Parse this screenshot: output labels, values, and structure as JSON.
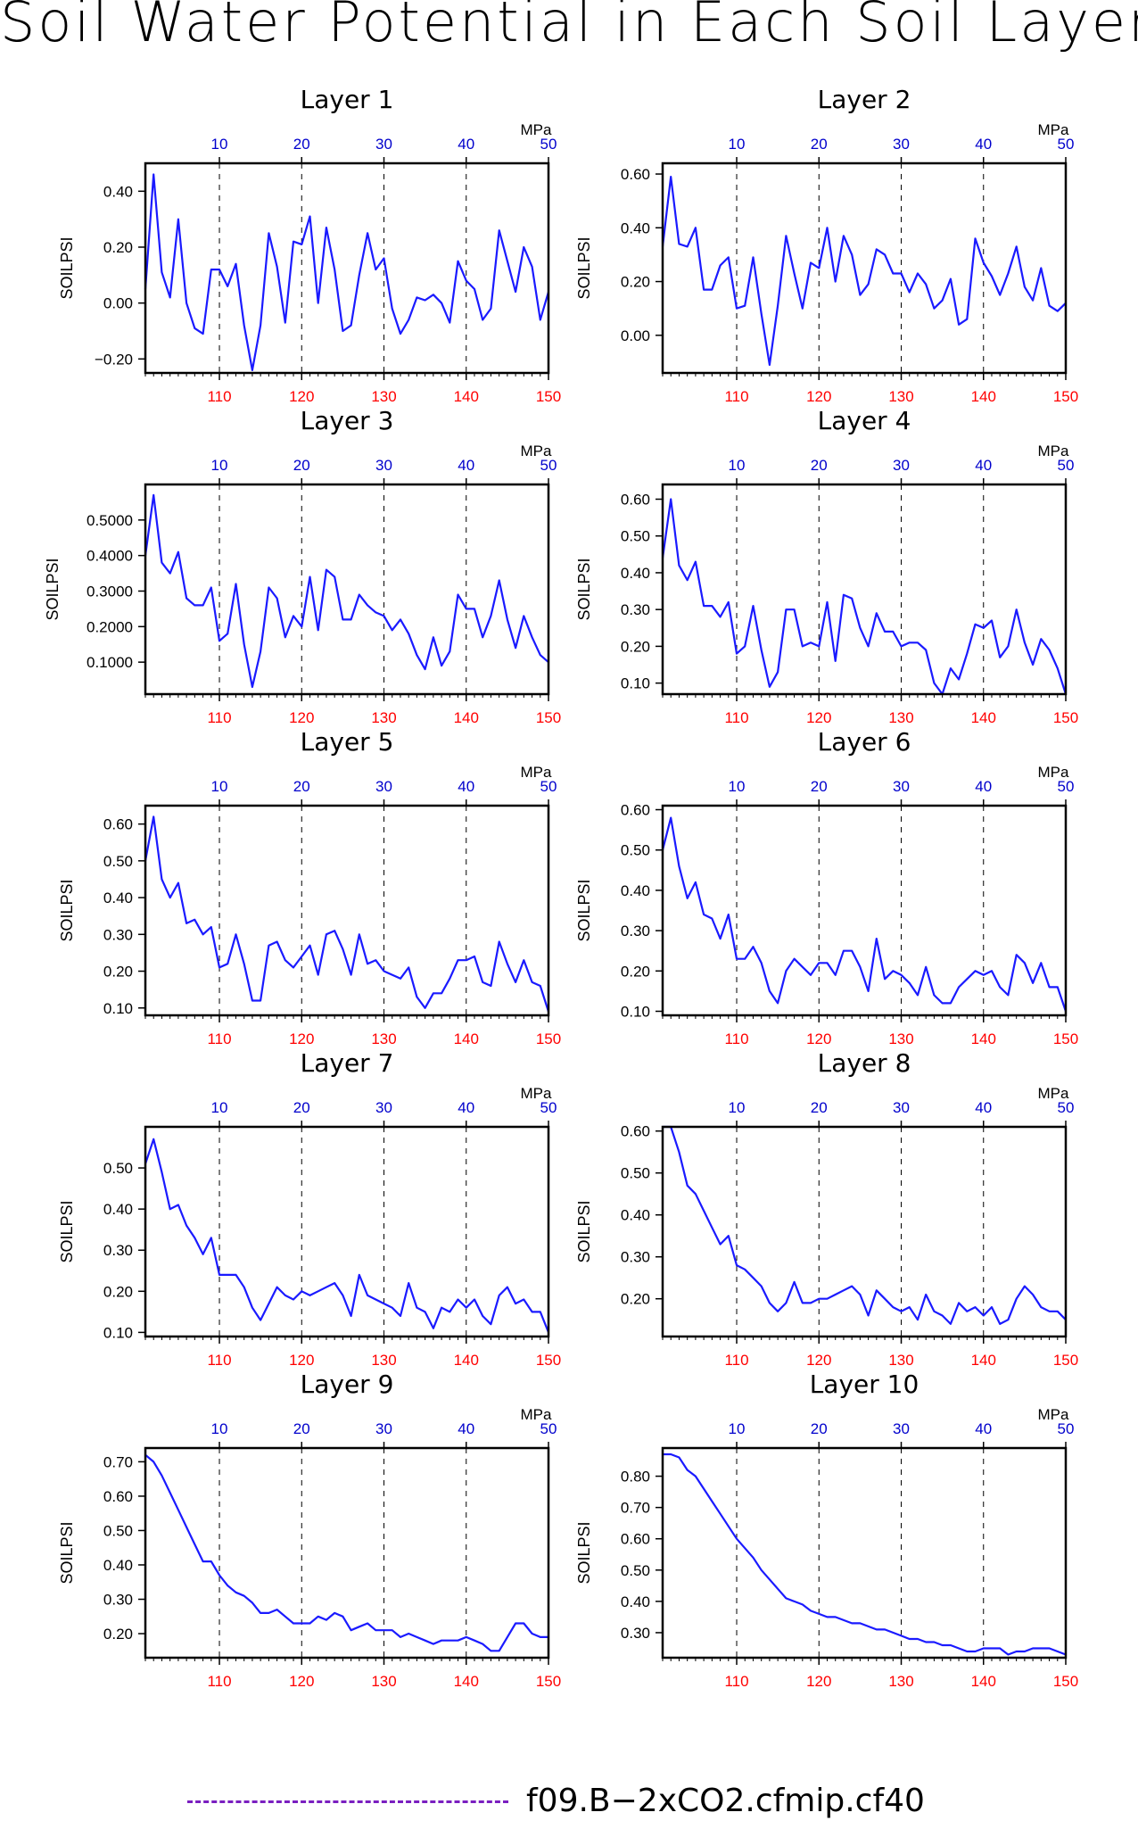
{
  "title": "Soil Water Potential in Each Soil Layer",
  "legend": {
    "label": "f09.B−2xCO2.cfmip.cf40",
    "color": "#7a1fc0",
    "style": "dashed"
  },
  "colors": {
    "line": "#1a1aff",
    "bottom_ticks": "#ff0000",
    "top_ticks": "#0000cc"
  },
  "chart_data": [
    {
      "type": "line",
      "title": "Layer 1",
      "ylabel": "SOILPSI",
      "top_unit": "MPa",
      "xlim": [
        101,
        150
      ],
      "ylim": [
        -0.25,
        0.5
      ],
      "grid": "vertical-dashed",
      "xticks": [
        110,
        120,
        130,
        140,
        150
      ],
      "top_ticks": [
        "10",
        "20",
        "30",
        "40",
        "50"
      ],
      "yticks": [
        -0.2,
        0.0,
        0.2,
        0.4
      ],
      "ytick_labels": [
        "−0.20",
        "0.00",
        "0.20",
        "0.40"
      ],
      "x_start": 101,
      "y": [
        0.05,
        0.46,
        0.11,
        0.02,
        0.3,
        0.0,
        -0.09,
        -0.11,
        0.12,
        0.12,
        0.06,
        0.14,
        -0.08,
        -0.24,
        -0.08,
        0.25,
        0.13,
        -0.07,
        0.22,
        0.21,
        0.31,
        0.0,
        0.27,
        0.12,
        -0.1,
        -0.08,
        0.1,
        0.25,
        0.12,
        0.16,
        -0.02,
        -0.11,
        -0.06,
        0.02,
        0.01,
        0.03,
        0.0,
        -0.07,
        0.15,
        0.08,
        0.05,
        -0.06,
        -0.02,
        0.26,
        0.15,
        0.04,
        0.2,
        0.13,
        -0.06,
        0.04
      ]
    },
    {
      "type": "line",
      "title": "Layer 2",
      "ylabel": "SOILPSI",
      "top_unit": "MPa",
      "xlim": [
        101,
        150
      ],
      "ylim": [
        -0.14,
        0.64
      ],
      "grid": "vertical-dashed",
      "xticks": [
        110,
        120,
        130,
        140,
        150
      ],
      "top_ticks": [
        "10",
        "20",
        "30",
        "40",
        "50"
      ],
      "yticks": [
        0.0,
        0.2,
        0.4,
        0.6
      ],
      "ytick_labels": [
        "0.00",
        "0.20",
        "0.40",
        "0.60"
      ],
      "x_start": 101,
      "y": [
        0.33,
        0.59,
        0.34,
        0.33,
        0.4,
        0.17,
        0.17,
        0.26,
        0.29,
        0.1,
        0.11,
        0.29,
        0.08,
        -0.11,
        0.11,
        0.37,
        0.23,
        0.1,
        0.27,
        0.25,
        0.4,
        0.2,
        0.37,
        0.3,
        0.15,
        0.19,
        0.32,
        0.3,
        0.23,
        0.23,
        0.16,
        0.23,
        0.19,
        0.1,
        0.13,
        0.21,
        0.04,
        0.06,
        0.36,
        0.27,
        0.22,
        0.15,
        0.23,
        0.33,
        0.18,
        0.13,
        0.25,
        0.11,
        0.09,
        0.12
      ]
    },
    {
      "type": "line",
      "title": "Layer 3",
      "ylabel": "SOILPSI",
      "top_unit": "MPa",
      "xlim": [
        101,
        150
      ],
      "ylim": [
        0.01,
        0.6
      ],
      "grid": "vertical-dashed",
      "xticks": [
        110,
        120,
        130,
        140,
        150
      ],
      "top_ticks": [
        "10",
        "20",
        "30",
        "40",
        "50"
      ],
      "yticks": [
        0.1,
        0.2,
        0.3,
        0.4,
        0.5
      ],
      "ytick_labels": [
        "0.1000",
        "0.2000",
        "0.3000",
        "0.4000",
        "0.5000"
      ],
      "x_start": 101,
      "y": [
        0.4,
        0.57,
        0.38,
        0.35,
        0.41,
        0.28,
        0.26,
        0.26,
        0.31,
        0.16,
        0.18,
        0.32,
        0.15,
        0.03,
        0.13,
        0.31,
        0.28,
        0.17,
        0.23,
        0.2,
        0.34,
        0.19,
        0.36,
        0.34,
        0.22,
        0.22,
        0.29,
        0.26,
        0.24,
        0.23,
        0.19,
        0.22,
        0.18,
        0.12,
        0.08,
        0.17,
        0.09,
        0.13,
        0.29,
        0.25,
        0.25,
        0.17,
        0.23,
        0.33,
        0.22,
        0.14,
        0.23,
        0.17,
        0.12,
        0.1
      ]
    },
    {
      "type": "line",
      "title": "Layer 4",
      "ylabel": "SOILPSI",
      "top_unit": "MPa",
      "xlim": [
        101,
        150
      ],
      "ylim": [
        0.07,
        0.64
      ],
      "grid": "vertical-dashed",
      "xticks": [
        110,
        120,
        130,
        140,
        150
      ],
      "top_ticks": [
        "10",
        "20",
        "30",
        "40",
        "50"
      ],
      "yticks": [
        0.1,
        0.2,
        0.3,
        0.4,
        0.5,
        0.6
      ],
      "ytick_labels": [
        "0.10",
        "0.20",
        "0.30",
        "0.40",
        "0.50",
        "0.60"
      ],
      "x_start": 101,
      "y": [
        0.44,
        0.6,
        0.42,
        0.38,
        0.43,
        0.31,
        0.31,
        0.28,
        0.32,
        0.18,
        0.2,
        0.31,
        0.19,
        0.09,
        0.13,
        0.3,
        0.3,
        0.2,
        0.21,
        0.2,
        0.32,
        0.16,
        0.34,
        0.33,
        0.25,
        0.2,
        0.29,
        0.24,
        0.24,
        0.2,
        0.21,
        0.21,
        0.19,
        0.1,
        0.07,
        0.14,
        0.11,
        0.18,
        0.26,
        0.25,
        0.27,
        0.17,
        0.2,
        0.3,
        0.21,
        0.15,
        0.22,
        0.19,
        0.14,
        0.07
      ]
    },
    {
      "type": "line",
      "title": "Layer 5",
      "ylabel": "SOILPSI",
      "top_unit": "MPa",
      "xlim": [
        101,
        150
      ],
      "ylim": [
        0.08,
        0.65
      ],
      "grid": "vertical-dashed",
      "xticks": [
        110,
        120,
        130,
        140,
        150
      ],
      "top_ticks": [
        "10",
        "20",
        "30",
        "40",
        "50"
      ],
      "yticks": [
        0.1,
        0.2,
        0.3,
        0.4,
        0.5,
        0.6
      ],
      "ytick_labels": [
        "0.10",
        "0.20",
        "0.30",
        "0.40",
        "0.50",
        "0.60"
      ],
      "x_start": 101,
      "y": [
        0.5,
        0.62,
        0.45,
        0.4,
        0.44,
        0.33,
        0.34,
        0.3,
        0.32,
        0.21,
        0.22,
        0.3,
        0.22,
        0.12,
        0.12,
        0.27,
        0.28,
        0.23,
        0.21,
        0.24,
        0.27,
        0.19,
        0.3,
        0.31,
        0.26,
        0.19,
        0.3,
        0.22,
        0.23,
        0.2,
        0.19,
        0.18,
        0.21,
        0.13,
        0.1,
        0.14,
        0.14,
        0.18,
        0.23,
        0.23,
        0.24,
        0.17,
        0.16,
        0.28,
        0.22,
        0.17,
        0.23,
        0.17,
        0.16,
        0.09
      ]
    },
    {
      "type": "line",
      "title": "Layer 6",
      "ylabel": "SOILPSI",
      "top_unit": "MPa",
      "xlim": [
        101,
        150
      ],
      "ylim": [
        0.09,
        0.61
      ],
      "grid": "vertical-dashed",
      "xticks": [
        110,
        120,
        130,
        140,
        150
      ],
      "top_ticks": [
        "10",
        "20",
        "30",
        "40",
        "50"
      ],
      "yticks": [
        0.1,
        0.2,
        0.3,
        0.4,
        0.5,
        0.6
      ],
      "ytick_labels": [
        "0.10",
        "0.20",
        "0.30",
        "0.40",
        "0.50",
        "0.60"
      ],
      "x_start": 101,
      "y": [
        0.5,
        0.58,
        0.46,
        0.38,
        0.42,
        0.34,
        0.33,
        0.28,
        0.34,
        0.23,
        0.23,
        0.26,
        0.22,
        0.15,
        0.12,
        0.2,
        0.23,
        0.21,
        0.19,
        0.22,
        0.22,
        0.19,
        0.25,
        0.25,
        0.21,
        0.15,
        0.28,
        0.18,
        0.2,
        0.19,
        0.17,
        0.14,
        0.21,
        0.14,
        0.12,
        0.12,
        0.16,
        0.18,
        0.2,
        0.19,
        0.2,
        0.16,
        0.14,
        0.24,
        0.22,
        0.17,
        0.22,
        0.16,
        0.16,
        0.1
      ]
    },
    {
      "type": "line",
      "title": "Layer 7",
      "ylabel": "SOILPSI",
      "top_unit": "MPa",
      "xlim": [
        101,
        150
      ],
      "ylim": [
        0.09,
        0.6
      ],
      "grid": "vertical-dashed",
      "xticks": [
        110,
        120,
        130,
        140,
        150
      ],
      "top_ticks": [
        "10",
        "20",
        "30",
        "40",
        "50"
      ],
      "yticks": [
        0.1,
        0.2,
        0.3,
        0.4,
        0.5
      ],
      "ytick_labels": [
        "0.10",
        "0.20",
        "0.30",
        "0.40",
        "0.50"
      ],
      "x_start": 101,
      "y": [
        0.51,
        0.57,
        0.49,
        0.4,
        0.41,
        0.36,
        0.33,
        0.29,
        0.33,
        0.24,
        0.24,
        0.24,
        0.21,
        0.16,
        0.13,
        0.17,
        0.21,
        0.19,
        0.18,
        0.2,
        0.19,
        0.2,
        0.21,
        0.22,
        0.19,
        0.14,
        0.24,
        0.19,
        0.18,
        0.17,
        0.16,
        0.14,
        0.22,
        0.16,
        0.15,
        0.11,
        0.16,
        0.15,
        0.18,
        0.16,
        0.18,
        0.14,
        0.12,
        0.19,
        0.21,
        0.17,
        0.18,
        0.15,
        0.15,
        0.1
      ]
    },
    {
      "type": "line",
      "title": "Layer 8",
      "ylabel": "SOILPSI",
      "top_unit": "MPa",
      "xlim": [
        101,
        150
      ],
      "ylim": [
        0.11,
        0.61
      ],
      "grid": "vertical-dashed",
      "xticks": [
        110,
        120,
        130,
        140,
        150
      ],
      "top_ticks": [
        "10",
        "20",
        "30",
        "40",
        "50"
      ],
      "yticks": [
        0.2,
        0.3,
        0.4,
        0.5,
        0.6
      ],
      "ytick_labels": [
        "0.20",
        "0.30",
        "0.40",
        "0.50",
        "0.60"
      ],
      "x_start": 101,
      "y": [
        0.61,
        0.61,
        0.55,
        0.47,
        0.45,
        0.41,
        0.37,
        0.33,
        0.35,
        0.28,
        0.27,
        0.25,
        0.23,
        0.19,
        0.17,
        0.19,
        0.24,
        0.19,
        0.19,
        0.2,
        0.2,
        0.21,
        0.22,
        0.23,
        0.21,
        0.16,
        0.22,
        0.2,
        0.18,
        0.17,
        0.18,
        0.15,
        0.21,
        0.17,
        0.16,
        0.14,
        0.19,
        0.17,
        0.18,
        0.16,
        0.18,
        0.14,
        0.15,
        0.2,
        0.23,
        0.21,
        0.18,
        0.17,
        0.17,
        0.15
      ]
    },
    {
      "type": "line",
      "title": "Layer 9",
      "ylabel": "SOILPSI",
      "top_unit": "MPa",
      "xlim": [
        101,
        150
      ],
      "ylim": [
        0.13,
        0.74
      ],
      "grid": "vertical-dashed",
      "xticks": [
        110,
        120,
        130,
        140,
        150
      ],
      "top_ticks": [
        "10",
        "20",
        "30",
        "40",
        "50"
      ],
      "yticks": [
        0.2,
        0.3,
        0.4,
        0.5,
        0.6,
        0.7
      ],
      "ytick_labels": [
        "0.20",
        "0.30",
        "0.40",
        "0.50",
        "0.60",
        "0.70"
      ],
      "x_start": 101,
      "y": [
        0.72,
        0.7,
        0.66,
        0.61,
        0.56,
        0.51,
        0.46,
        0.41,
        0.41,
        0.37,
        0.34,
        0.32,
        0.31,
        0.29,
        0.26,
        0.26,
        0.27,
        0.25,
        0.23,
        0.23,
        0.23,
        0.25,
        0.24,
        0.26,
        0.25,
        0.21,
        0.22,
        0.23,
        0.21,
        0.21,
        0.21,
        0.19,
        0.2,
        0.19,
        0.18,
        0.17,
        0.18,
        0.18,
        0.18,
        0.19,
        0.18,
        0.17,
        0.15,
        0.15,
        0.19,
        0.23,
        0.23,
        0.2,
        0.19,
        0.19
      ]
    },
    {
      "type": "line",
      "title": "Layer 10",
      "ylabel": "SOILPSI",
      "top_unit": "MPa",
      "xlim": [
        101,
        150
      ],
      "ylim": [
        0.22,
        0.89
      ],
      "grid": "vertical-dashed",
      "xticks": [
        110,
        120,
        130,
        140,
        150
      ],
      "top_ticks": [
        "10",
        "20",
        "30",
        "40",
        "50"
      ],
      "yticks": [
        0.3,
        0.4,
        0.5,
        0.6,
        0.7,
        0.8
      ],
      "ytick_labels": [
        "0.30",
        "0.40",
        "0.50",
        "0.60",
        "0.70",
        "0.80"
      ],
      "x_start": 101,
      "y": [
        0.87,
        0.87,
        0.86,
        0.82,
        0.8,
        0.76,
        0.72,
        0.68,
        0.64,
        0.6,
        0.57,
        0.54,
        0.5,
        0.47,
        0.44,
        0.41,
        0.4,
        0.39,
        0.37,
        0.36,
        0.35,
        0.35,
        0.34,
        0.33,
        0.33,
        0.32,
        0.31,
        0.31,
        0.3,
        0.29,
        0.28,
        0.28,
        0.27,
        0.27,
        0.26,
        0.26,
        0.25,
        0.24,
        0.24,
        0.25,
        0.25,
        0.25,
        0.23,
        0.24,
        0.24,
        0.25,
        0.25,
        0.25,
        0.24,
        0.23
      ]
    }
  ]
}
